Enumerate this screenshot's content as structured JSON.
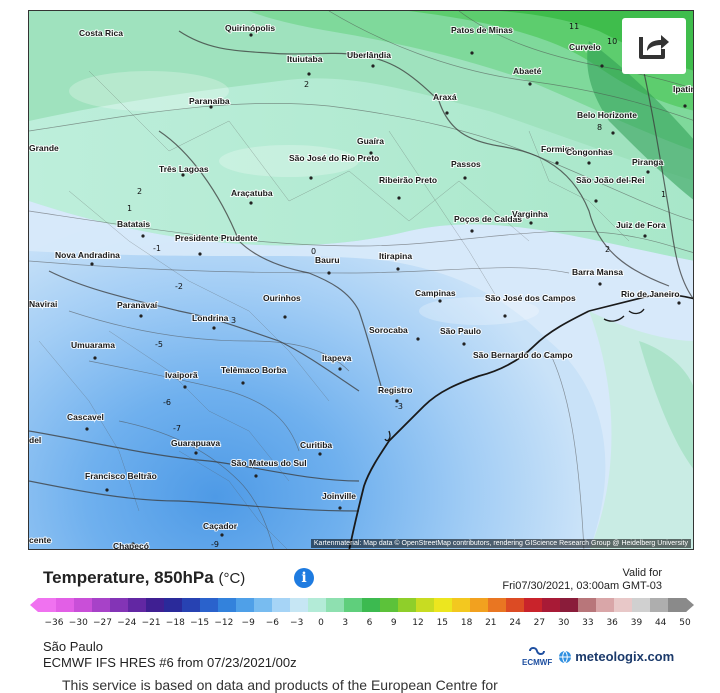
{
  "map": {
    "attribution": "Kartenmaterial: Map data © OpenStreetMap contributors, rendering GIScience Research Group @ Heidelberg University",
    "cities": [
      "Costa Rica",
      "Quirinópolis",
      "Patos de Minas",
      "Curvelo",
      "Ituiutaba",
      "Uberlândia",
      "Abaeté",
      "Ipatinga",
      "Paranaíba",
      "Araxá",
      "Belo Horizonte",
      "Guaíra",
      "Formiga",
      "Congonhas",
      "Piranga",
      "Três Lagoas",
      "São José do Rio Preto",
      "Passos",
      "Ribeirão Preto",
      "São João del-Rei",
      "Araçatuba",
      "Poços de Caldas",
      "Varginha",
      "Juiz de Fora",
      "Batatais",
      "Presidente Prudente",
      "Nova Andradina",
      "Bauru",
      "Itirapina",
      "Barra Mansa",
      "Campinas",
      "Rio de Janeiro",
      "Paranavaí",
      "São José dos Campos",
      "Ourinhos",
      "Londrina",
      "Sorocaba",
      "São Paulo",
      "Umuarama",
      "São Bernardo do Campo",
      "Telêmaco Borba",
      "Itapeva",
      "Ivaiporã",
      "Registro",
      "Cascavel",
      "Guarapuava",
      "Curitiba",
      "São Mateus do Sul",
      "Francisco Beltrão",
      "Joinville",
      "Caçador",
      "Chapecó",
      "Navirai",
      "Grande",
      "del",
      "cente"
    ],
    "isolines": [
      "11",
      "10",
      "8",
      "2",
      "2",
      "1",
      "-1",
      "-2",
      "-3",
      "-5",
      "-6",
      "-7",
      "-9",
      "3",
      "1",
      "2",
      "0"
    ]
  },
  "share_icon": "share-arrow-icon",
  "info_icon": "info-icon",
  "title": {
    "main": "Temperature, 850hPa",
    "unit": "(°C)"
  },
  "valid": {
    "label": "Valid for",
    "datetime": "Fri07/30/2021, 03:00am GMT-03"
  },
  "scale": {
    "ticks": [
      "-36",
      "-30",
      "-27",
      "-24",
      "-21",
      "-18",
      "-15",
      "-12",
      "-9",
      "-6",
      "-3",
      "0",
      "3",
      "6",
      "9",
      "12",
      "15",
      "18",
      "21",
      "24",
      "27",
      "30",
      "33",
      "36",
      "39",
      "44",
      "50"
    ],
    "colors": [
      "#f072f0",
      "#e25fe6",
      "#c94fd8",
      "#a742c8",
      "#8334b6",
      "#6227a3",
      "#3f1f92",
      "#2a2a9a",
      "#2742b2",
      "#2a62cc",
      "#3382dc",
      "#4fa0e8",
      "#78bcf0",
      "#a6d4f6",
      "#c6e6f4",
      "#b3ebd7",
      "#8ee0b0",
      "#5fcf7c",
      "#3cba50",
      "#5cc23a",
      "#8fcf2a",
      "#c8dc22",
      "#ece61f",
      "#f3c81f",
      "#f2a11f",
      "#e97622",
      "#dc4b24",
      "#c9232b",
      "#a81a36",
      "#8a1c3a",
      "#b8767a",
      "#d9a6a8",
      "#e8c8c8",
      "#d0d0d0",
      "#aeaeae",
      "#8a8a8a"
    ]
  },
  "location": "São Paulo",
  "model": "ECMWF IFS HRES #6 from 07/23/2021/00z",
  "logos": {
    "ecmwf": "ECMWF",
    "meteologix": "meteologix.com"
  },
  "disclaimer": "This service is based on data and products of the European Centre for"
}
